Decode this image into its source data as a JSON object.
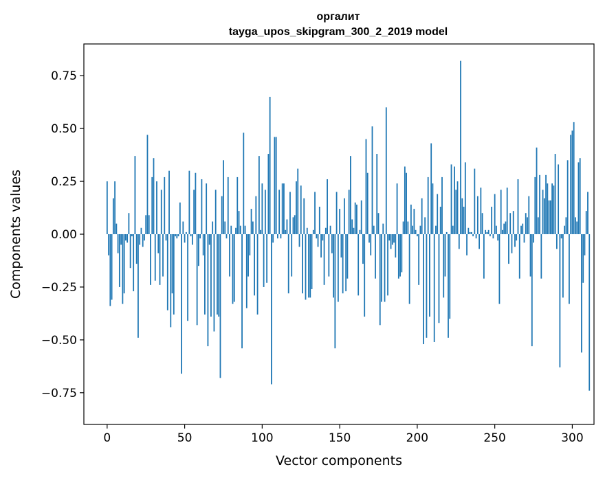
{
  "chart_data": {
    "type": "bar",
    "title": "оргалит",
    "subtitle": "tayga_upos_skipgram_300_2_2019 model",
    "xlabel": "Vector components",
    "ylabel": "Components values",
    "xlim": [
      -15,
      314
    ],
    "ylim": [
      -0.9,
      0.9
    ],
    "xticks": [
      0,
      50,
      100,
      150,
      200,
      250,
      300
    ],
    "xtick_labels": [
      "0",
      "50",
      "100",
      "150",
      "200",
      "250",
      "300"
    ],
    "yticks": [
      -0.75,
      -0.5,
      -0.25,
      0.0,
      0.25,
      0.5,
      0.75
    ],
    "ytick_labels": [
      "−0.75",
      "−0.50",
      "−0.25",
      "0.00",
      "0.25",
      "0.50",
      "0.75"
    ],
    "grid": false,
    "legend": "none",
    "bar_color": "#1f77b4",
    "series": [
      {
        "values": [
          0.25,
          -0.1,
          -0.34,
          -0.31,
          0.17,
          0.25,
          0.05,
          -0.09,
          -0.25,
          -0.05,
          -0.33,
          -0.28,
          -0.03,
          -0.04,
          0.1,
          -0.16,
          -0.01,
          -0.27,
          0.37,
          -0.14,
          -0.49,
          -0.05,
          0.03,
          -0.06,
          -0.03,
          0.09,
          0.47,
          0.09,
          -0.24,
          0.27,
          0.36,
          -0.22,
          0.25,
          -0.09,
          -0.24,
          0.21,
          -0.2,
          0.27,
          -0.03,
          -0.36,
          0.3,
          -0.44,
          -0.28,
          -0.38,
          -0.01,
          -0.02,
          -0.01,
          0.15,
          -0.66,
          0.06,
          -0.04,
          0.01,
          -0.41,
          0.3,
          -0.01,
          -0.05,
          0.21,
          0.29,
          -0.43,
          -0.15,
          -0.02,
          0.26,
          -0.1,
          -0.38,
          0.24,
          -0.53,
          -0.05,
          -0.39,
          0.06,
          -0.46,
          0.21,
          -0.38,
          -0.39,
          -0.68,
          0.18,
          0.35,
          0.06,
          -0.02,
          0.27,
          -0.2,
          0.04,
          -0.33,
          -0.32,
          0.03,
          0.27,
          0.11,
          0.04,
          -0.54,
          0.48,
          0.04,
          -0.35,
          -0.2,
          -0.1,
          0.12,
          0.06,
          -0.29,
          0.18,
          -0.38,
          0.37,
          0.02,
          0.24,
          -0.25,
          0.21,
          -0.23,
          0.38,
          0.65,
          -0.71,
          -0.04,
          0.46,
          0.46,
          -0.02,
          0.21,
          -0.02,
          0.24,
          0.24,
          0.02,
          0.07,
          -0.28,
          0.2,
          -0.2,
          0.08,
          0.09,
          0.25,
          0.31,
          -0.06,
          0.23,
          -0.28,
          0.17,
          -0.31,
          0.03,
          -0.3,
          -0.3,
          -0.26,
          0.02,
          0.2,
          -0.02,
          -0.06,
          0.13,
          -0.11,
          -0.03,
          -0.24,
          0.03,
          0.26,
          -0.2,
          0.04,
          -0.09,
          -0.3,
          -0.54,
          0.2,
          -0.32,
          0.12,
          -0.11,
          -0.28,
          0.17,
          -0.27,
          -0.21,
          0.21,
          0.37,
          0.07,
          0.03,
          0.15,
          0.14,
          -0.29,
          0.02,
          0.16,
          -0.14,
          -0.39,
          0.45,
          0.29,
          -0.04,
          -0.1,
          0.51,
          0.04,
          -0.21,
          0.38,
          0.1,
          -0.43,
          -0.32,
          0.05,
          -0.32,
          0.6,
          -0.29,
          -0.03,
          -0.07,
          -0.05,
          -0.04,
          -0.11,
          0.24,
          -0.21,
          -0.2,
          -0.18,
          0.06,
          0.32,
          0.29,
          0.06,
          -0.33,
          0.14,
          0.04,
          0.12,
          0.02,
          -0.01,
          -0.24,
          0.04,
          0.17,
          -0.52,
          0.08,
          -0.49,
          0.27,
          -0.39,
          0.43,
          0.24,
          -0.51,
          0.04,
          0.19,
          -0.42,
          0.13,
          0.27,
          -0.3,
          -0.2,
          0.01,
          -0.49,
          -0.4,
          0.33,
          0.04,
          0.32,
          0.21,
          0.25,
          -0.07,
          0.82,
          0.17,
          0.13,
          0.34,
          -0.1,
          0.03,
          0.01,
          0.01,
          -0.01,
          0.31,
          -0.02,
          0.18,
          -0.07,
          0.22,
          0.1,
          -0.21,
          0.02,
          0.01,
          0.02,
          -0.01,
          0.13,
          -0.02,
          0.19,
          0.04,
          -0.03,
          -0.33,
          0.21,
          0.02,
          0.05,
          0.06,
          0.22,
          -0.14,
          0.1,
          -0.09,
          0.11,
          -0.06,
          -0.03,
          0.26,
          -0.21,
          0.04,
          0.05,
          -0.04,
          0.1,
          0.08,
          0.18,
          -0.2,
          -0.53,
          -0.04,
          0.27,
          0.41,
          0.08,
          0.28,
          -0.21,
          0.21,
          0.17,
          0.28,
          0.24,
          0.16,
          0.16,
          0.24,
          0.23,
          0.38,
          -0.07,
          0.33,
          -0.63,
          -0.02,
          -0.3,
          0.04,
          0.08,
          0.35,
          -0.33,
          0.47,
          0.49,
          0.53,
          0.08,
          0.06,
          0.34,
          0.36,
          -0.56,
          -0.23,
          -0.1,
          0.11,
          0.2,
          -0.74
        ]
      }
    ]
  }
}
